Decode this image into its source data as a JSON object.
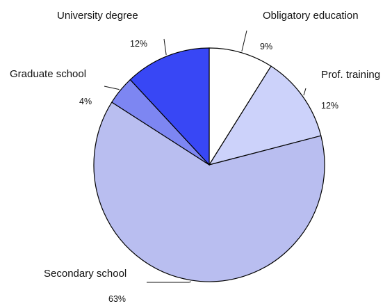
{
  "chart_data": {
    "type": "pie",
    "slices": [
      {
        "label": "Obligatory education",
        "value": 9,
        "value_label": "9%",
        "color": "#ffffff"
      },
      {
        "label": "Prof. training",
        "value": 12,
        "value_label": "12%",
        "color": "#ccd2fa"
      },
      {
        "label": "Secondary school",
        "value": 63,
        "value_label": "63%",
        "color": "#b9bef0"
      },
      {
        "label": "Graduate school",
        "value": 4,
        "value_label": "4%",
        "color": "#7d86f2"
      },
      {
        "label": "University degree",
        "value": 12,
        "value_label": "12%",
        "color": "#3847f5"
      }
    ],
    "start": "12 o'clock",
    "direction": "clockwise",
    "legend": "none"
  }
}
